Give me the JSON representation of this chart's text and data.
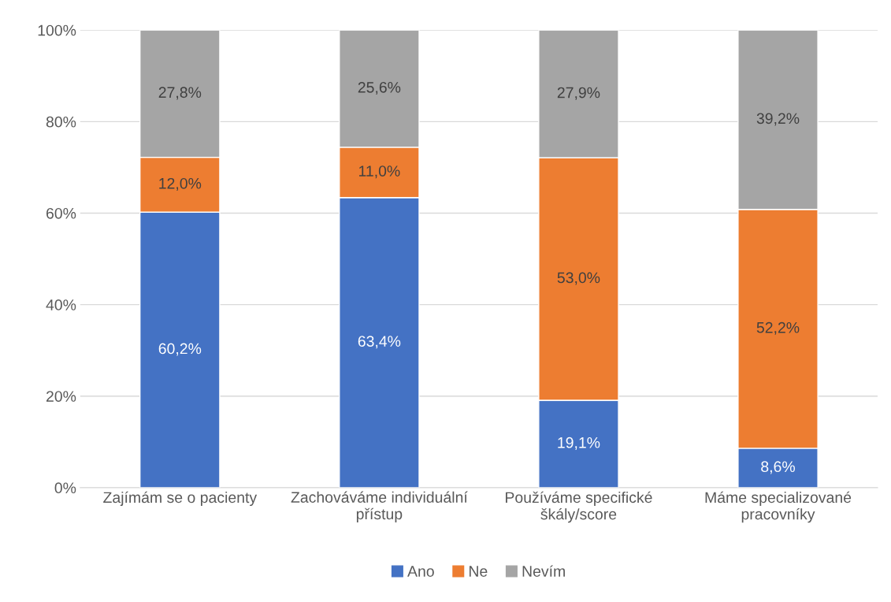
{
  "chart_data": {
    "type": "bar",
    "stacked": true,
    "categories": [
      "Zajímám se o pacienty",
      "Zachováváme individuální přístup",
      "Používáme specifické škály/score",
      "Máme specializované pracovníky"
    ],
    "series": [
      {
        "name": "Ano",
        "color": "#4472c4",
        "values": [
          60.2,
          63.4,
          19.1,
          8.6
        ],
        "value_labels": [
          "60,2%",
          "63,4%",
          "19,1%",
          "8,6%"
        ]
      },
      {
        "name": "Ne",
        "color": "#ed7d31",
        "values": [
          12.0,
          11.0,
          53.0,
          52.2
        ],
        "value_labels": [
          "12,0%",
          "11,0%",
          "53,0%",
          "52,2%"
        ]
      },
      {
        "name": "Nevím",
        "color": "#a5a5a5",
        "values": [
          27.8,
          25.6,
          27.9,
          39.2
        ],
        "value_labels": [
          "27,8%",
          "25,6%",
          "27,9%",
          "39,2%"
        ]
      }
    ],
    "ylim": [
      0,
      100
    ],
    "yticks": [
      {
        "value": 0,
        "label": "0%"
      },
      {
        "value": 20,
        "label": "20%"
      },
      {
        "value": 40,
        "label": "40%"
      },
      {
        "value": 60,
        "label": "60%"
      },
      {
        "value": 80,
        "label": "80%"
      },
      {
        "value": 100,
        "label": "100%"
      }
    ],
    "grid": "y",
    "legend": "bottom"
  }
}
